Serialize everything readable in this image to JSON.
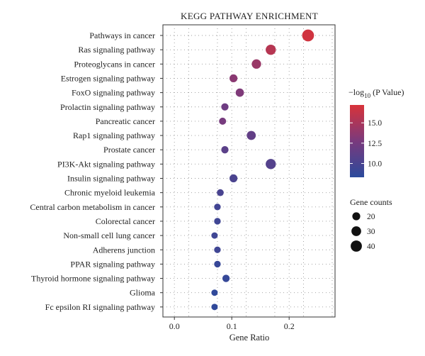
{
  "chart_data": {
    "type": "scatter",
    "title": "KEGG PATHWAY ENRICHMENT",
    "xlabel": "Gene Ratio",
    "ylabel": "",
    "xlim": [
      -0.02,
      0.28
    ],
    "x_ticks": [
      0.0,
      0.1,
      0.2
    ],
    "x_tick_labels": [
      "0.0",
      "0.1",
      "0.2"
    ],
    "grid": true,
    "categories": [
      "Pathways in cancer",
      "Ras signaling pathway",
      "Proteoglycans in cancer",
      "Estrogen signaling pathway",
      "FoxO signaling pathway",
      "Prolactin signaling pathway",
      "Pancreatic cancer",
      "Rap1 signaling pathway",
      "Prostate cancer",
      "PI3K-Akt signaling pathway",
      "Insulin signaling pathway",
      "Chronic myeloid leukemia",
      "Central carbon metabolism in cancer",
      "Colorectal cancer",
      "Non-small cell lung cancer",
      "Adherens junction",
      "PPAR signaling pathway",
      "Thyroid hormone signaling pathway",
      "Glioma",
      "Fc epsilon RI signaling pathway"
    ],
    "gene_ratio": [
      0.233,
      0.168,
      0.143,
      0.103,
      0.114,
      0.088,
      0.084,
      0.134,
      0.088,
      0.168,
      0.103,
      0.08,
      0.075,
      0.075,
      0.07,
      0.075,
      0.075,
      0.09,
      0.07,
      0.07
    ],
    "neg_log10_p": [
      16.8,
      15.6,
      14.2,
      13.5,
      13.0,
      12.1,
      12.6,
      11.4,
      11.0,
      10.6,
      10.1,
      10.0,
      9.6,
      9.5,
      9.4,
      9.5,
      9.0,
      8.9,
      8.6,
      8.6
    ],
    "gene_counts": [
      45,
      33,
      28,
      20,
      22,
      17,
      16,
      26,
      17,
      33,
      20,
      15,
      14,
      14,
      13,
      14,
      14,
      17,
      13,
      13
    ],
    "color_legend": {
      "title_prefix": "−log",
      "title_sub": "10",
      "title_suffix": " (P Value)",
      "ticks": [
        15.0,
        12.5,
        10.0
      ],
      "tick_labels": [
        "15.0",
        "12.5",
        "10.0"
      ],
      "range": [
        8.3,
        17.2
      ],
      "low_color": "#2b4a9c",
      "mid_color": "#7a3a7d",
      "high_color": "#d8333a"
    },
    "size_legend": {
      "title": "Gene counts",
      "values": [
        20,
        30,
        40
      ],
      "labels": [
        "20",
        "30",
        "40"
      ]
    }
  }
}
